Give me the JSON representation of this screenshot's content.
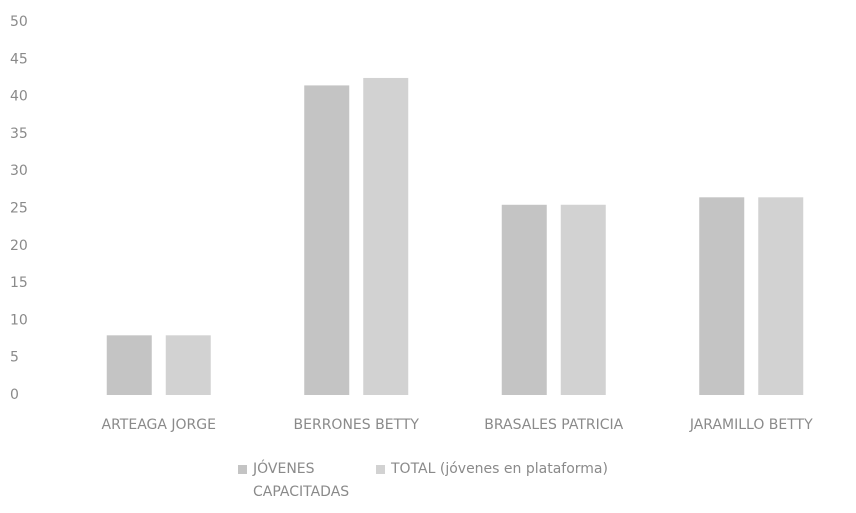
{
  "chart_data": {
    "type": "bar",
    "categories": [
      "ARTEAGA JORGE",
      "BERRONES BETTY",
      "BRASALES PATRICIA",
      "JARAMILLO BETTY"
    ],
    "series": [
      {
        "name": "JÓVENES CAPACITADAS",
        "color": "#c4c4c4",
        "values": [
          8,
          41.5,
          25.5,
          26.5
        ]
      },
      {
        "name": "TOTAL (jóvenes en plataforma)",
        "color": "#d2d2d2",
        "values": [
          8,
          42.5,
          25.5,
          26.5
        ]
      }
    ],
    "ylim": [
      0,
      50
    ],
    "yticks": [
      0,
      5,
      10,
      15,
      20,
      25,
      30,
      35,
      40,
      45,
      50
    ],
    "grid": false,
    "legend": "bottom"
  }
}
